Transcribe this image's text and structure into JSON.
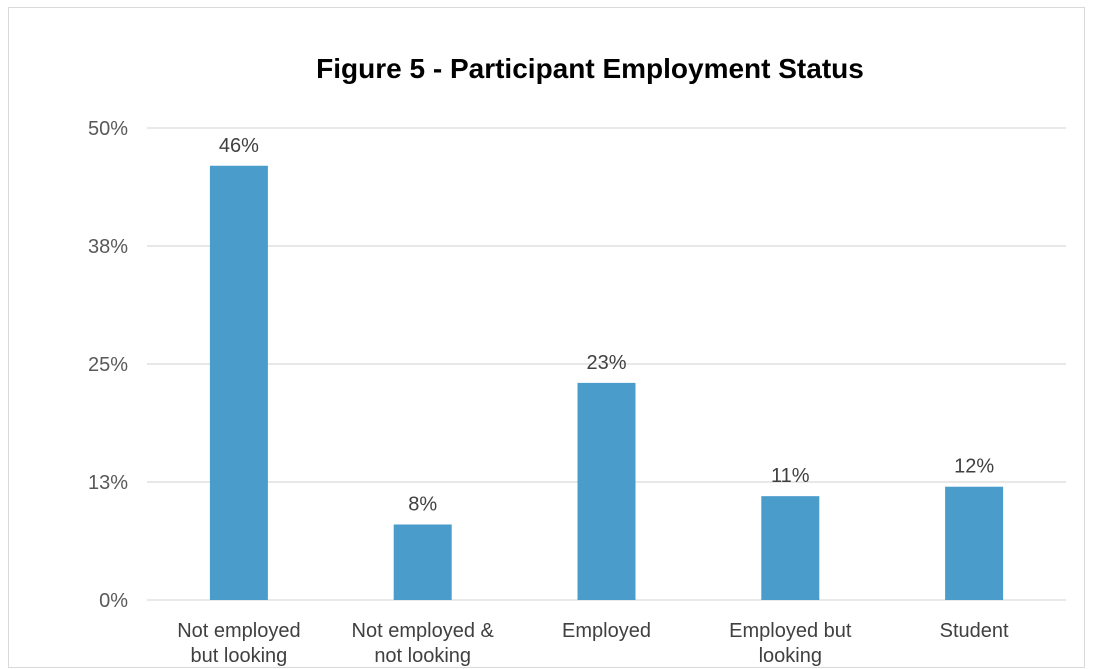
{
  "chart_data": {
    "type": "bar",
    "title": "Figure 5 - Participant Employment Status",
    "xlabel": "",
    "ylabel": "",
    "categories": [
      [
        "Not employed",
        "but looking"
      ],
      [
        "Not employed &",
        "not looking"
      ],
      [
        "Employed"
      ],
      [
        "Employed but",
        "looking"
      ],
      [
        "Student"
      ]
    ],
    "values": [
      46,
      8,
      23,
      11,
      12
    ],
    "data_labels": [
      "46%",
      "8%",
      "23%",
      "11%",
      "12%"
    ],
    "ylim": [
      0,
      50
    ],
    "y_ticks": [
      0,
      12.5,
      25,
      37.5,
      50
    ],
    "y_tick_labels": [
      "0%",
      "13%",
      "25%",
      "38%",
      "50%"
    ],
    "grid": true,
    "legend": "none",
    "bar_color": "#4a9ccb",
    "gridline_color": "#d9d9d9"
  }
}
